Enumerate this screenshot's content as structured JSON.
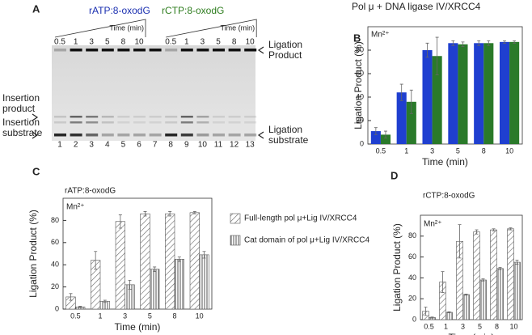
{
  "gel": {
    "label": "A",
    "groups": [
      {
        "name": "rATP:8-oxodG",
        "color": "#1a2fb0"
      },
      {
        "name": "rCTP:8-oxodG",
        "color": "#2e7d1e"
      }
    ],
    "time_label": "Time (min)",
    "times": [
      "0.5",
      "1",
      "3",
      "5",
      "8",
      "10"
    ],
    "lanes": [
      "1",
      "2",
      "3",
      "4",
      "5",
      "6",
      "7",
      "8",
      "9",
      "10",
      "11",
      "12",
      "13"
    ],
    "right_labels": [
      [
        "Ligation",
        "Product"
      ],
      [
        "Ligation",
        "substrate"
      ]
    ],
    "left_labels": [
      [
        "Insertion",
        "product"
      ],
      [
        "Insertion",
        "substrate"
      ]
    ]
  },
  "chart_data": [
    {
      "type": "bar",
      "label": "B",
      "title": "Pol μ + DNA ligase IV/XRCC4",
      "annotation": "Mn²⁺",
      "ylabel": "Ligation Product (%)",
      "xlabel": "Time (min)",
      "categories": [
        "0.5",
        "1",
        "3",
        "5",
        "8",
        "10"
      ],
      "series": [
        {
          "color": "#1f3fd0",
          "values": [
            11,
            44,
            80,
            86,
            86,
            87
          ],
          "errors": [
            3,
            7,
            6,
            2,
            2,
            1
          ]
        },
        {
          "color": "#2a7a2a",
          "values": [
            8,
            36,
            75,
            85,
            86,
            87
          ],
          "errors": [
            3,
            10,
            16,
            2,
            2,
            1
          ]
        }
      ],
      "ylim": [
        0,
        100
      ],
      "yticks": [
        0,
        20,
        40,
        60,
        80
      ]
    },
    {
      "type": "bar",
      "label": "C",
      "title": "rATP:8-oxodG",
      "annotation": "Mn²⁺",
      "ylabel": "Ligation Product (%)",
      "xlabel": "Time (min)",
      "categories": [
        "0.5",
        "1",
        "3",
        "5",
        "8",
        "10"
      ],
      "legend": "right",
      "series": [
        {
          "name": "Full-length pol μ+Lig IV/XRCC4",
          "color": "#555555",
          "hatch": "diagonal",
          "values": [
            11,
            44,
            79,
            86,
            86,
            87
          ],
          "errors": [
            3,
            8,
            6,
            2,
            2,
            1
          ]
        },
        {
          "name": "Cat domain of pol μ+Lig IV/XRCC4",
          "color": "#555555",
          "hatch": "vertical",
          "values": [
            2,
            7,
            22,
            36,
            45,
            49
          ],
          "errors": [
            0.5,
            1,
            4,
            2,
            2,
            3
          ]
        }
      ],
      "ylim": [
        0,
        100
      ],
      "yticks": [
        0,
        20,
        40,
        60,
        80
      ]
    },
    {
      "type": "bar",
      "label": "D",
      "title": "rCTP:8-oxodG",
      "annotation": "Mn²⁺",
      "ylabel": "Ligation Product (%)",
      "xlabel": "Time (min)",
      "categories": [
        "0.5",
        "1",
        "3",
        "5",
        "8",
        "10"
      ],
      "series": [
        {
          "color": "#555555",
          "hatch": "diagonal",
          "values": [
            8,
            36,
            75,
            84,
            86,
            87
          ],
          "errors": [
            4,
            10,
            16,
            2,
            1,
            1
          ]
        },
        {
          "color": "#555555",
          "hatch": "vertical",
          "values": [
            2,
            7,
            24,
            38,
            49,
            55
          ],
          "errors": [
            0.5,
            0.5,
            0.5,
            1,
            1,
            2
          ]
        }
      ],
      "ylim": [
        0,
        100
      ],
      "yticks": [
        0,
        20,
        40,
        60,
        80
      ]
    }
  ]
}
